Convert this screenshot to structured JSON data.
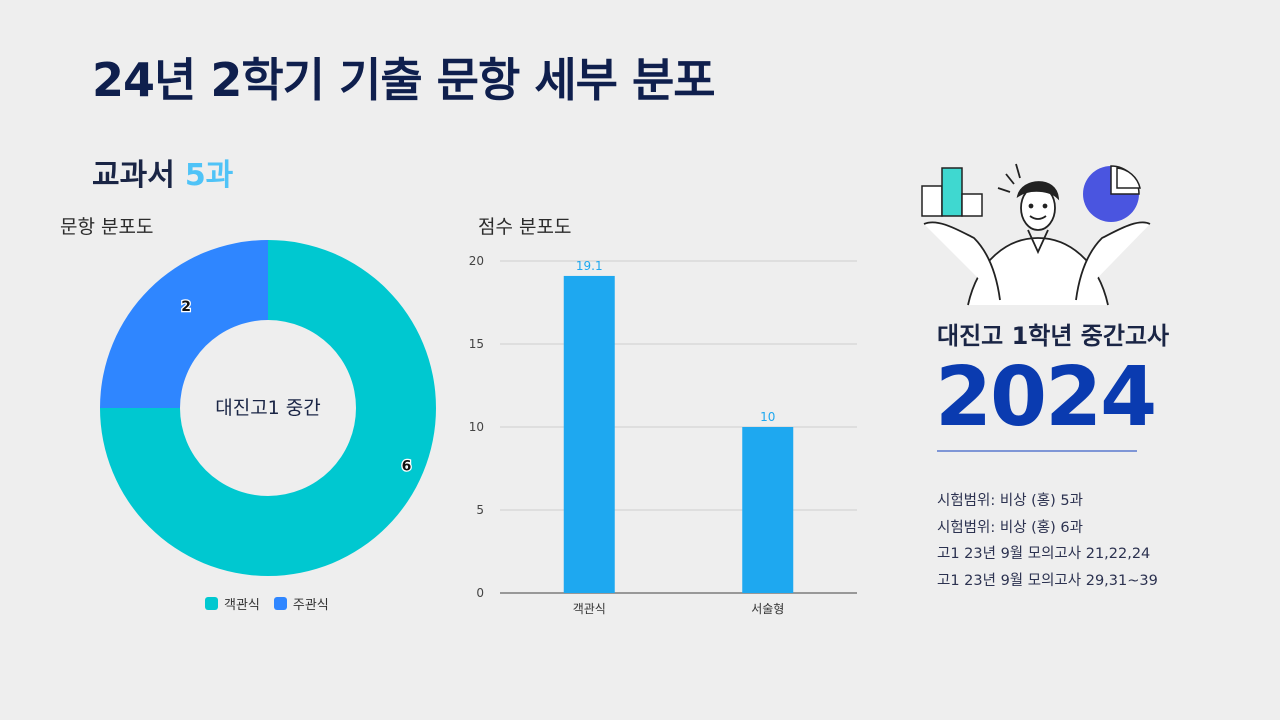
{
  "header": {
    "title": "24년 2학기 기출 문항 세부 분포",
    "subtitle_prefix": "교과서",
    "subtitle_accent": "5과"
  },
  "donut_section": {
    "label": "문항 분포도",
    "center_label": "대진고1 중간"
  },
  "bar_section": {
    "label": "점수 분포도"
  },
  "right_panel": {
    "school_title": "대진고 1학년 중간고사",
    "year": "2024",
    "info_lines": [
      "시험범위: 비상 (홍) 5과",
      "시험범위: 비상 (홍) 6과",
      "고1 23년 9월 모의고사 21,22,24",
      "고1 23년 9월 모의고사 29,31~39"
    ]
  },
  "colors": {
    "objective": "#00c8d0",
    "subjective": "#2f86ff",
    "bar": "#1ea8f0",
    "bar_label": "#1ea8f0",
    "accent": "#4fc3f7",
    "year": "#0a3bb0"
  },
  "chart_data": [
    {
      "type": "pie",
      "subtype": "donut",
      "title": "문항 분포도",
      "center_text": "대진고1 중간",
      "categories": [
        "객관식",
        "주관식"
      ],
      "values": [
        6,
        2
      ],
      "legend": [
        "객관식",
        "주관식"
      ],
      "legend_position": "bottom"
    },
    {
      "type": "bar",
      "title": "점수 분포도",
      "categories": [
        "객관식",
        "서술형"
      ],
      "values": [
        19.1,
        10
      ],
      "value_labels": [
        "19.1",
        "10"
      ],
      "ylim": [
        0,
        20
      ],
      "yticks": [
        0,
        5,
        10,
        15,
        20
      ],
      "grid": true,
      "xlabel": "",
      "ylabel": ""
    }
  ]
}
